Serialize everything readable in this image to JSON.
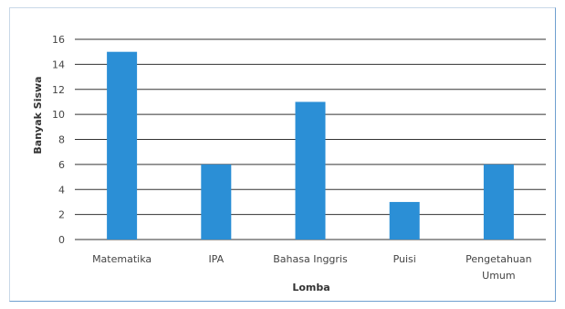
{
  "chart_data": {
    "type": "bar",
    "title": "",
    "xlabel": "Lomba",
    "ylabel": "Banyak Siswa",
    "categories": [
      [
        "Matematika"
      ],
      [
        "IPA"
      ],
      [
        "Bahasa Inggris"
      ],
      [
        "Puisi"
      ],
      [
        "Pengetahuan",
        "Umum"
      ]
    ],
    "values": [
      15,
      6,
      11,
      3,
      6
    ],
    "ylim": [
      0,
      16
    ],
    "yticks": [
      "0",
      "2",
      "4",
      "6",
      "8",
      "10",
      "12",
      "14",
      "16"
    ],
    "grid": true,
    "legend": "none",
    "colors": {
      "bar": "#2b8fd6",
      "grid": "#333333"
    }
  }
}
